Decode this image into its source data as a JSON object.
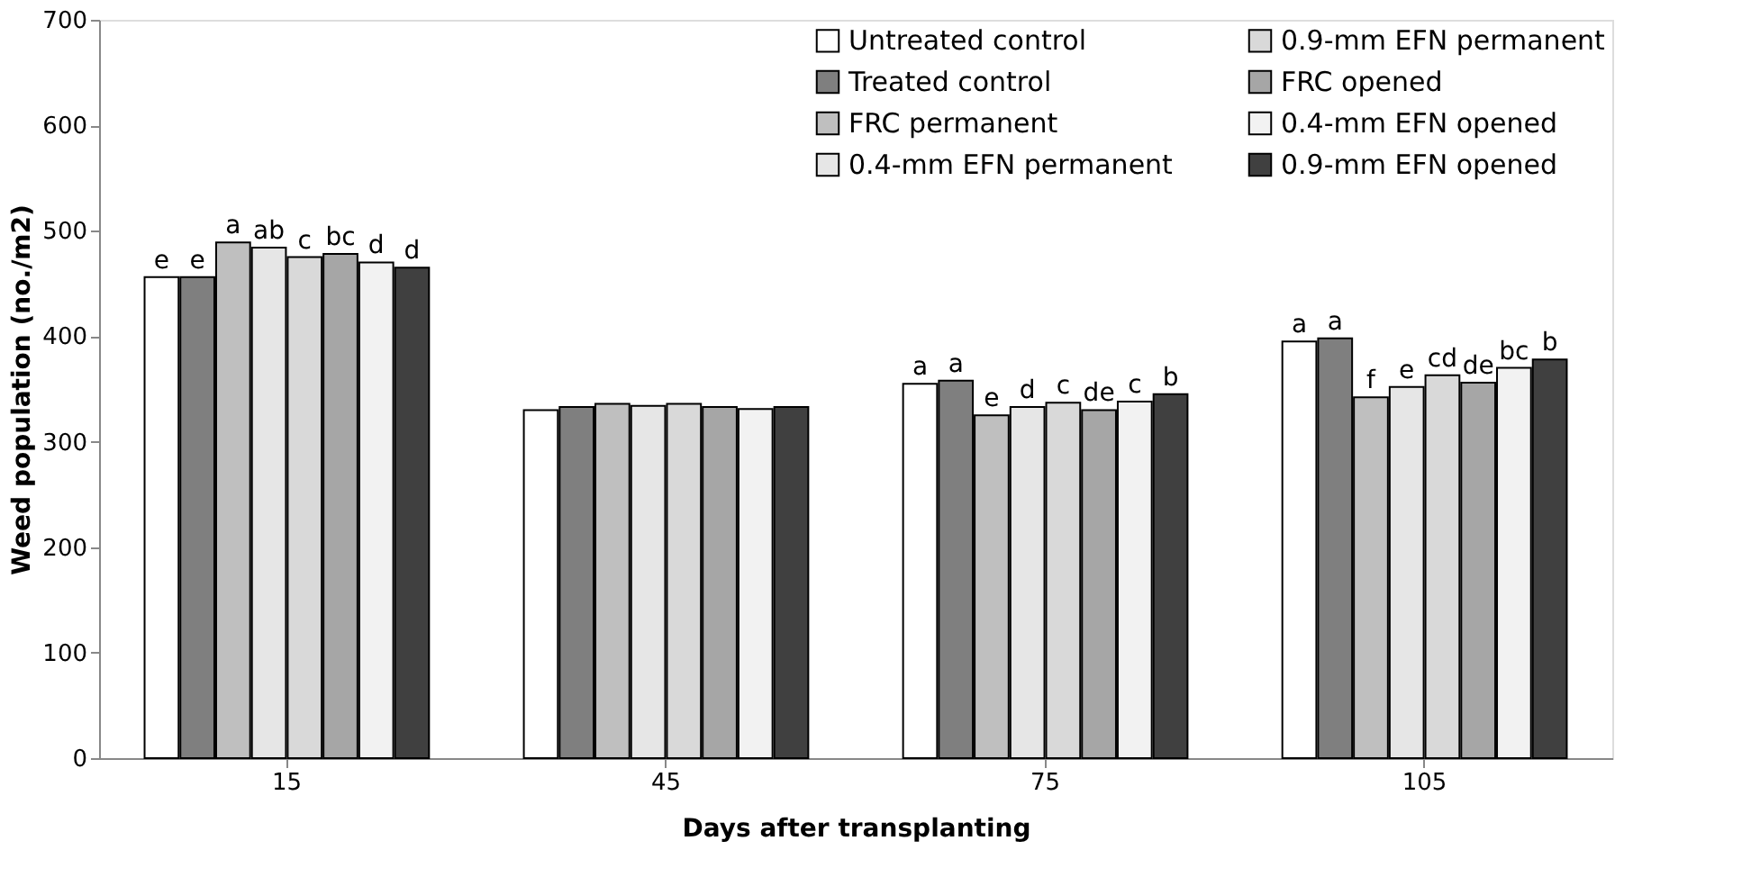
{
  "chart_data": {
    "type": "bar",
    "xlabel": "Days after transplanting",
    "ylabel": "Weed population (no./m2)",
    "categories": [
      "15",
      "45",
      "75",
      "105"
    ],
    "ylim": [
      0,
      700
    ],
    "yticks": [
      0,
      100,
      200,
      300,
      400,
      500,
      600,
      700
    ],
    "grid": false,
    "legend": "top right",
    "series": [
      {
        "name": "Untreated control",
        "color": "#ffffff",
        "values": [
          456,
          330,
          355,
          395
        ],
        "value_labels": [
          "e",
          null,
          "a",
          "a"
        ]
      },
      {
        "name": "Treated control",
        "color": "#7f7f7f",
        "values": [
          456,
          333,
          358,
          398
        ],
        "value_labels": [
          "e",
          null,
          "a",
          "a"
        ]
      },
      {
        "name": "FRC permanent",
        "color": "#bfbfbf",
        "values": [
          489,
          336,
          325,
          342
        ],
        "value_labels": [
          "a",
          null,
          "e",
          "f"
        ]
      },
      {
        "name": "0.4-mm EFN permanent",
        "color": "#e6e6e6",
        "values": [
          484,
          334,
          333,
          352
        ],
        "value_labels": [
          "ab",
          null,
          "d",
          "e"
        ]
      },
      {
        "name": "0.9-mm EFN permanent",
        "color": "#d9d9d9",
        "values": [
          475,
          336,
          337,
          363
        ],
        "value_labels": [
          "c",
          null,
          "c",
          "cd"
        ]
      },
      {
        "name": "FRC opened",
        "color": "#a6a6a6",
        "values": [
          478,
          333,
          330,
          356
        ],
        "value_labels": [
          "bc",
          null,
          "de",
          "de"
        ]
      },
      {
        "name": "0.4-mm EFN opened",
        "color": "#f2f2f2",
        "values": [
          470,
          331,
          338,
          370
        ],
        "value_labels": [
          "d",
          null,
          "c",
          "bc"
        ]
      },
      {
        "name": "0.9-mm EFN opened",
        "color": "#404040",
        "values": [
          465,
          333,
          345,
          378
        ],
        "value_labels": [
          "d",
          null,
          "b",
          "b"
        ]
      }
    ]
  }
}
